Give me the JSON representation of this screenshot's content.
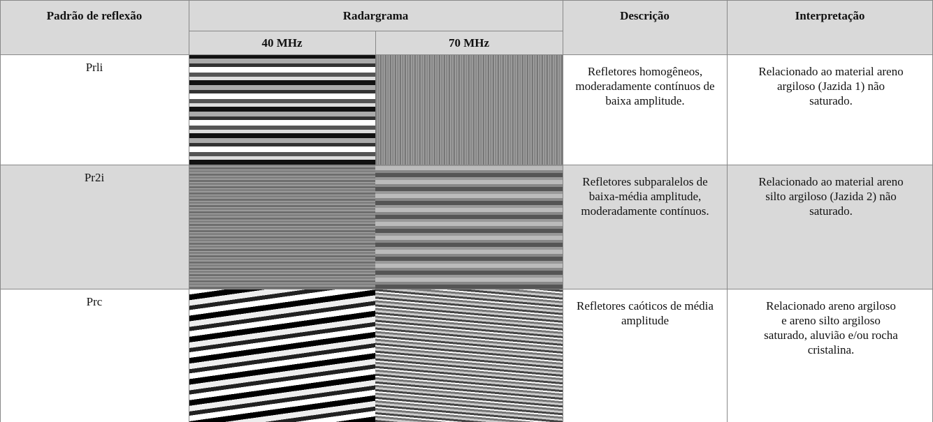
{
  "table": {
    "header": {
      "pattern": "Padrão de reflexão",
      "radargram": "Radargrama",
      "frequencies": [
        "40 MHz",
        "70 MHz"
      ],
      "description": "Descrição",
      "interpretation": "Interpretação"
    },
    "rows": [
      {
        "pattern": "Prli",
        "description": "Refletores homogêneos, moderadamente contínuos de baixa amplitude.",
        "interpretation": "Relacionado ao material areno argiloso (Jazida 1) não saturado."
      },
      {
        "pattern": "Pr2i",
        "description": "Refletores subparalelos de baixa-média amplitude, moderadamente contínuos.",
        "interpretation": "Relacionado ao material areno silto argiloso (Jazida 2) não saturado."
      },
      {
        "pattern": "Prc",
        "description": "Refletores caóticos de média amplitude",
        "interpretation": "Relacionado areno argiloso e areno silto argiloso saturado, aluvião e/ou rocha cristalina."
      }
    ]
  }
}
